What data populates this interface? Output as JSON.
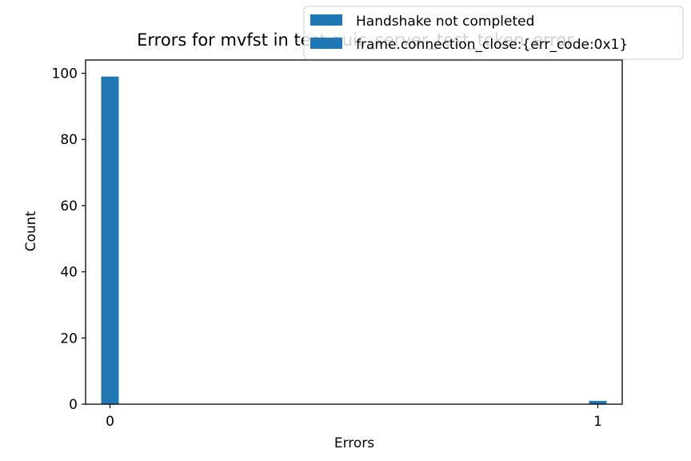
{
  "chart_data": {
    "type": "bar",
    "title": "Errors for mvfst in test quic_server_test_token_error",
    "xlabel": "Errors",
    "ylabel": "Count",
    "x_ticks": [
      "0",
      "1"
    ],
    "y_ticks": [
      "0",
      "20",
      "40",
      "60",
      "80",
      "100"
    ],
    "xlim": [
      -0.05,
      1.05
    ],
    "ylim": [
      0,
      104
    ],
    "legend_position": "top-right",
    "series": [
      {
        "name": "Handshake not completed",
        "color": "#1f77b4",
        "x": [
          0
        ],
        "values": [
          99
        ]
      },
      {
        "name": "frame.connection_close:{err_code:0x1}",
        "color": "#1f77b4",
        "x": [
          1
        ],
        "values": [
          1
        ]
      }
    ]
  }
}
